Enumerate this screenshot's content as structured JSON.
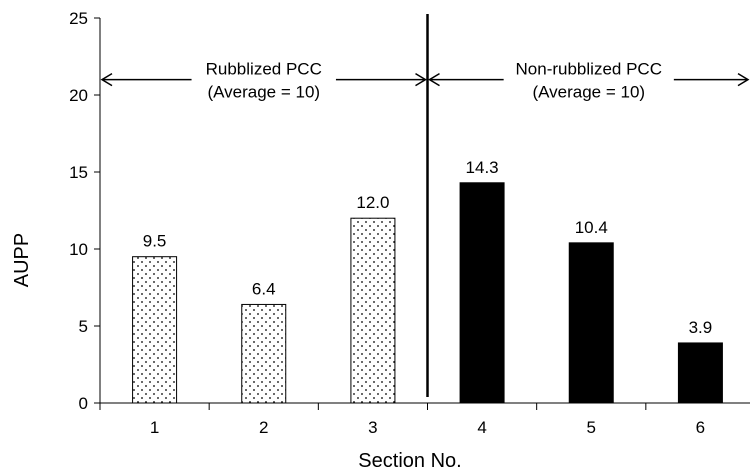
{
  "chart_data": {
    "type": "bar",
    "title": "",
    "xlabel": "Section No.",
    "ylabel": "AUPP",
    "ylim": [
      0,
      25
    ],
    "yticks": [
      "0",
      "5",
      "10",
      "15",
      "20",
      "25"
    ],
    "grid": false,
    "categories": [
      "1",
      "2",
      "3",
      "4",
      "5",
      "6"
    ],
    "series": [
      {
        "values": [
          9.5,
          6.4,
          12.0,
          null,
          null,
          null
        ],
        "data_labels": [
          "9.5",
          "6.4",
          "12.0",
          "",
          "",
          ""
        ],
        "pattern": "dotted",
        "fill_color": "#ffffff"
      },
      {
        "values": [
          null,
          null,
          null,
          14.3,
          10.4,
          3.9
        ],
        "data_labels": [
          "",
          "",
          "",
          "14.3",
          "10.4",
          "3.9"
        ],
        "pattern": "solid",
        "fill_color": "#000000"
      }
    ],
    "divider": {
      "between_categories": [
        "3",
        "4"
      ]
    },
    "annotations": [
      {
        "line1": "Rubblized PCC",
        "line2": "(Average = 10)",
        "spans": [
          "1",
          "3"
        ],
        "y": 21
      },
      {
        "line1": "Non-rubblized PCC",
        "line2": "(Average = 10)",
        "spans": [
          "4",
          "6"
        ],
        "y": 21
      }
    ]
  }
}
